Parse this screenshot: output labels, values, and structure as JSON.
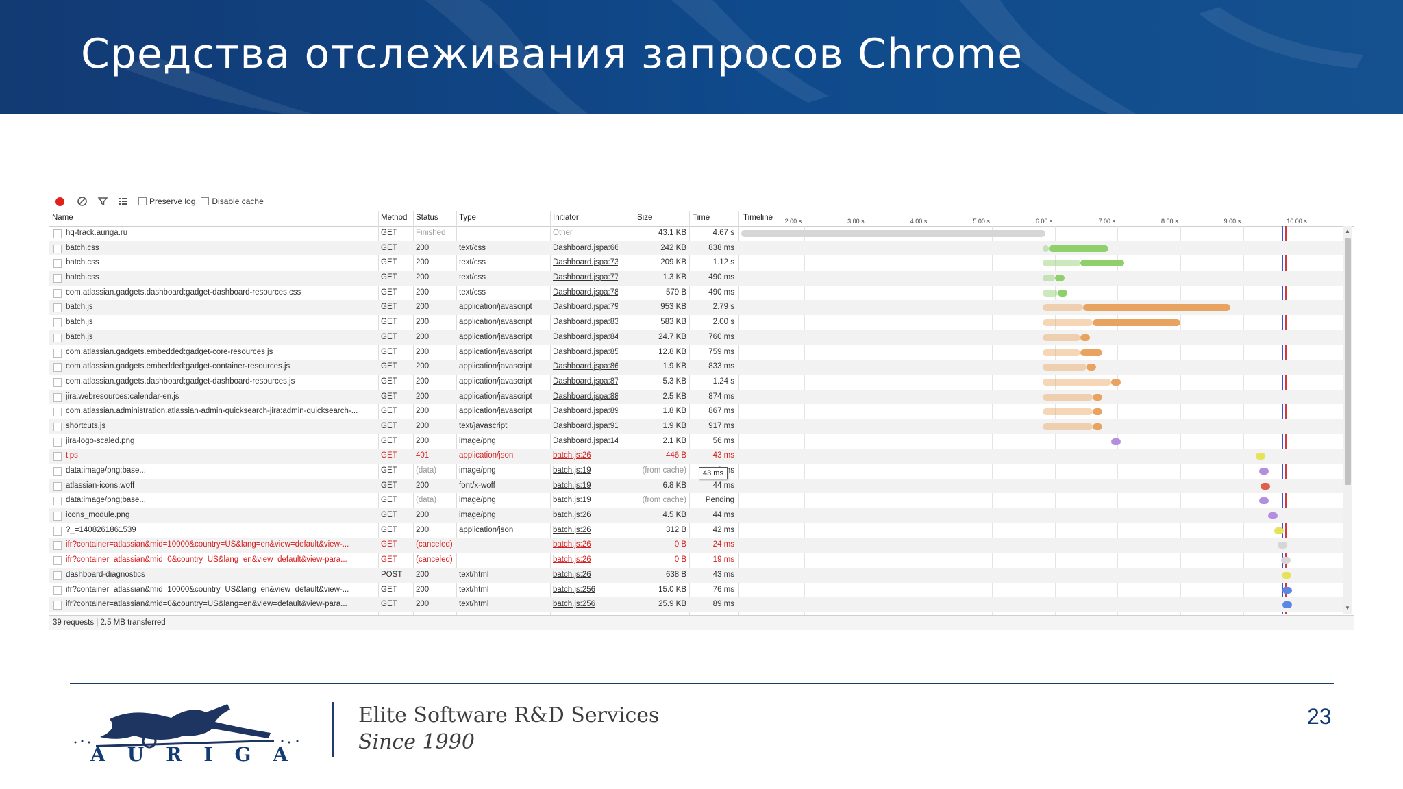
{
  "slide": {
    "title": "Средства отслеживания запросов Chrome",
    "page_number": "23",
    "tagline_line1": "Elite Software R&D Services",
    "tagline_line2": "Since 1990",
    "logo_text": "AURIGA"
  },
  "toolbar": {
    "preserve_log": "Preserve log",
    "disable_cache": "Disable cache"
  },
  "columns": {
    "name": "Name",
    "method": "Method",
    "status": "Status",
    "type": "Type",
    "initiator": "Initiator",
    "size": "Size",
    "time": "Time",
    "timeline": "Timeline"
  },
  "timeline_ticks": [
    "2.00 s",
    "3.00 s",
    "4.00 s",
    "5.00 s",
    "6.00 s",
    "7.00 s",
    "8.00 s",
    "9.00 s",
    "10.00 s"
  ],
  "colors": {
    "header_bg": "#123a73",
    "css": "#8fcf6c",
    "js": "#e9a360",
    "image": "#b48ede",
    "json": "#e6e25a",
    "font": "#e0604f",
    "html": "#5b86e3",
    "pending": "#d6d6d6",
    "error_text": "#d61e1e"
  },
  "requests": [
    {
      "name": "hq-track.auriga.ru",
      "method": "GET",
      "status": "Finished",
      "type": "",
      "initiator": "Other",
      "size": "43.1 KB",
      "time": "4.67 s",
      "kind": "pending"
    },
    {
      "name": "batch.css",
      "method": "GET",
      "status": "200",
      "type": "text/css",
      "initiator": "Dashboard.jspa:66",
      "size": "242 KB",
      "time": "838 ms",
      "kind": "css"
    },
    {
      "name": "batch.css",
      "method": "GET",
      "status": "200",
      "type": "text/css",
      "initiator": "Dashboard.jspa:73",
      "size": "209 KB",
      "time": "1.12 s",
      "kind": "css"
    },
    {
      "name": "batch.css",
      "method": "GET",
      "status": "200",
      "type": "text/css",
      "initiator": "Dashboard.jspa:77",
      "size": "1.3 KB",
      "time": "490 ms",
      "kind": "css"
    },
    {
      "name": "com.atlassian.gadgets.dashboard:gadget-dashboard-resources.css",
      "method": "GET",
      "status": "200",
      "type": "text/css",
      "initiator": "Dashboard.jspa:78",
      "size": "579 B",
      "time": "490 ms",
      "kind": "css"
    },
    {
      "name": "batch.js",
      "method": "GET",
      "status": "200",
      "type": "application/javascript",
      "initiator": "Dashboard.jspa:79",
      "size": "953 KB",
      "time": "2.79 s",
      "kind": "js"
    },
    {
      "name": "batch.js",
      "method": "GET",
      "status": "200",
      "type": "application/javascript",
      "initiator": "Dashboard.jspa:83",
      "size": "583 KB",
      "time": "2.00 s",
      "kind": "js"
    },
    {
      "name": "batch.js",
      "method": "GET",
      "status": "200",
      "type": "application/javascript",
      "initiator": "Dashboard.jspa:84",
      "size": "24.7 KB",
      "time": "760 ms",
      "kind": "js"
    },
    {
      "name": "com.atlassian.gadgets.embedded:gadget-core-resources.js",
      "method": "GET",
      "status": "200",
      "type": "application/javascript",
      "initiator": "Dashboard.jspa:85",
      "size": "12.8 KB",
      "time": "759 ms",
      "kind": "js"
    },
    {
      "name": "com.atlassian.gadgets.embedded:gadget-container-resources.js",
      "method": "GET",
      "status": "200",
      "type": "application/javascript",
      "initiator": "Dashboard.jspa:86",
      "size": "1.9 KB",
      "time": "833 ms",
      "kind": "js"
    },
    {
      "name": "com.atlassian.gadgets.dashboard:gadget-dashboard-resources.js",
      "method": "GET",
      "status": "200",
      "type": "application/javascript",
      "initiator": "Dashboard.jspa:87",
      "size": "5.3 KB",
      "time": "1.24 s",
      "kind": "js"
    },
    {
      "name": "jira.webresources:calendar-en.js",
      "method": "GET",
      "status": "200",
      "type": "application/javascript",
      "initiator": "Dashboard.jspa:88",
      "size": "2.5 KB",
      "time": "874 ms",
      "kind": "js"
    },
    {
      "name": "com.atlassian.administration.atlassian-admin-quicksearch-jira:admin-quicksearch-...",
      "method": "GET",
      "status": "200",
      "type": "application/javascript",
      "initiator": "Dashboard.jspa:89",
      "size": "1.8 KB",
      "time": "867 ms",
      "kind": "js"
    },
    {
      "name": "shortcuts.js",
      "method": "GET",
      "status": "200",
      "type": "text/javascript",
      "initiator": "Dashboard.jspa:91",
      "size": "1.9 KB",
      "time": "917 ms",
      "kind": "js"
    },
    {
      "name": "jira-logo-scaled.png",
      "method": "GET",
      "status": "200",
      "type": "image/png",
      "initiator": "Dashboard.jspa:141",
      "size": "2.1 KB",
      "time": "56 ms",
      "kind": "image"
    },
    {
      "name": "tips",
      "method": "GET",
      "status": "401",
      "type": "application/json",
      "initiator": "batch.js:26",
      "size": "446 B",
      "time": "43 ms",
      "kind": "json",
      "error": true
    },
    {
      "name": "data:image/png;base...",
      "method": "GET",
      "status": "(data)",
      "type": "image/png",
      "initiator": "batch.js:19",
      "size": "(from cache)",
      "time": "0 ms",
      "kind": "image"
    },
    {
      "name": "atlassian-icons.woff",
      "method": "GET",
      "status": "200",
      "type": "font/x-woff",
      "initiator": "batch.js:19",
      "size": "6.8 KB",
      "time": "44 ms",
      "kind": "font"
    },
    {
      "name": "data:image/png;base...",
      "method": "GET",
      "status": "(data)",
      "type": "image/png",
      "initiator": "batch.js:19",
      "size": "(from cache)",
      "time": "Pending",
      "kind": "image"
    },
    {
      "name": "icons_module.png",
      "method": "GET",
      "status": "200",
      "type": "image/png",
      "initiator": "batch.js:26",
      "size": "4.5 KB",
      "time": "44 ms",
      "kind": "image"
    },
    {
      "name": "?_=1408261861539",
      "method": "GET",
      "status": "200",
      "type": "application/json",
      "initiator": "batch.js:26",
      "size": "312 B",
      "time": "42 ms",
      "kind": "json"
    },
    {
      "name": "ifr?container=atlassian&mid=10000&country=US&lang=en&view=default&view-...",
      "method": "GET",
      "status": "(canceled)",
      "type": "",
      "initiator": "batch.js:26",
      "size": "0 B",
      "time": "24 ms",
      "kind": "pending",
      "error": true
    },
    {
      "name": "ifr?container=atlassian&mid=0&country=US&lang=en&view=default&view-para...",
      "method": "GET",
      "status": "(canceled)",
      "type": "",
      "initiator": "batch.js:26",
      "size": "0 B",
      "time": "19 ms",
      "kind": "pending",
      "error": true
    },
    {
      "name": "dashboard-diagnostics",
      "method": "POST",
      "status": "200",
      "type": "text/html",
      "initiator": "batch.js:26",
      "size": "638 B",
      "time": "43 ms",
      "kind": "json"
    },
    {
      "name": "ifr?container=atlassian&mid=10000&country=US&lang=en&view=default&view-...",
      "method": "GET",
      "status": "200",
      "type": "text/html",
      "initiator": "batch.js:256",
      "size": "15.0 KB",
      "time": "76 ms",
      "kind": "html"
    },
    {
      "name": "ifr?container=atlassian&mid=0&country=US&lang=en&view=default&view-para...",
      "method": "GET",
      "status": "200",
      "type": "text/html",
      "initiator": "batch.js:256",
      "size": "25.9 KB",
      "time": "89 ms",
      "kind": "html"
    }
  ],
  "timeline_bars": [
    {
      "wait_start": 1.0,
      "start": 1.0,
      "end": 5.85
    },
    {
      "wait_start": 5.8,
      "start": 5.9,
      "end": 6.85
    },
    {
      "wait_start": 5.8,
      "start": 6.4,
      "end": 7.1
    },
    {
      "wait_start": 5.8,
      "start": 6.0,
      "end": 6.3
    },
    {
      "wait_start": 5.8,
      "start": 6.05,
      "end": 6.3
    },
    {
      "wait_start": 5.8,
      "start": 6.45,
      "end": 8.8
    },
    {
      "wait_start": 5.8,
      "start": 6.6,
      "end": 8.0
    },
    {
      "wait_start": 5.8,
      "start": 6.4,
      "end": 6.7
    },
    {
      "wait_start": 5.8,
      "start": 6.4,
      "end": 6.75
    },
    {
      "wait_start": 5.8,
      "start": 6.5,
      "end": 6.8
    },
    {
      "wait_start": 5.8,
      "start": 6.9,
      "end": 7.2
    },
    {
      "wait_start": 5.8,
      "start": 6.6,
      "end": 6.85
    },
    {
      "wait_start": 5.8,
      "start": 6.6,
      "end": 6.85
    },
    {
      "wait_start": 5.8,
      "start": 6.6,
      "end": 6.85
    },
    {
      "start": 6.9,
      "end": 7.05
    },
    {
      "start": 9.2,
      "end": 9.35
    },
    {
      "start": 9.25,
      "end": 9.4
    },
    {
      "start": 9.28,
      "end": 9.45
    },
    {
      "start": 9.25,
      "end": 9.4
    },
    {
      "start": 9.4,
      "end": 9.55
    },
    {
      "start": 9.5,
      "end": 9.65
    },
    {
      "start": 9.55,
      "end": 9.7
    },
    {
      "start": 9.6,
      "end": 9.75
    },
    {
      "start": 9.62,
      "end": 9.78
    },
    {
      "start": 9.63,
      "end": 9.85
    },
    {
      "start": 9.63,
      "end": 9.85
    }
  ],
  "timeline_markers": [
    {
      "t": 9.62,
      "color": "#3b55d6"
    },
    {
      "t": 9.67,
      "color": "#d43a3a"
    }
  ],
  "status_bar": "39 requests | 2.5 MB transferred",
  "tooltip": "43 ms"
}
